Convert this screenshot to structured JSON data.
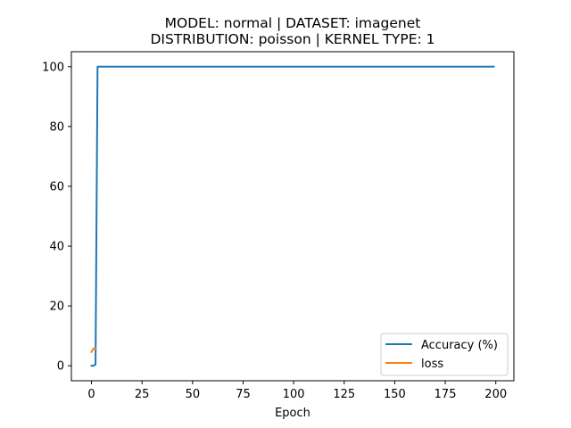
{
  "chart_data": {
    "type": "line",
    "title_line1": "MODEL: normal | DATASET: imagenet",
    "title_line2": "DISTRIBUTION: poisson | KERNEL TYPE: 1",
    "xlabel": "Epoch",
    "ylabel": "",
    "xlim": [
      -9.95,
      208.95
    ],
    "ylim": [
      -5,
      105
    ],
    "xticks": [
      0,
      25,
      50,
      75,
      100,
      125,
      150,
      175,
      200
    ],
    "yticks": [
      0,
      20,
      40,
      60,
      80,
      100
    ],
    "grid": false,
    "legend_position": "lower-right",
    "series": [
      {
        "name": "Accuracy (%)",
        "color": "#1f77b4",
        "x": [
          0,
          1,
          2,
          3,
          199
        ],
        "y": [
          0,
          0,
          0.5,
          100,
          100
        ]
      },
      {
        "name": "loss",
        "color": "#ff7f0e",
        "x": [
          0,
          1,
          2
        ],
        "y": [
          4.6,
          5.8,
          5.8
        ]
      }
    ]
  }
}
